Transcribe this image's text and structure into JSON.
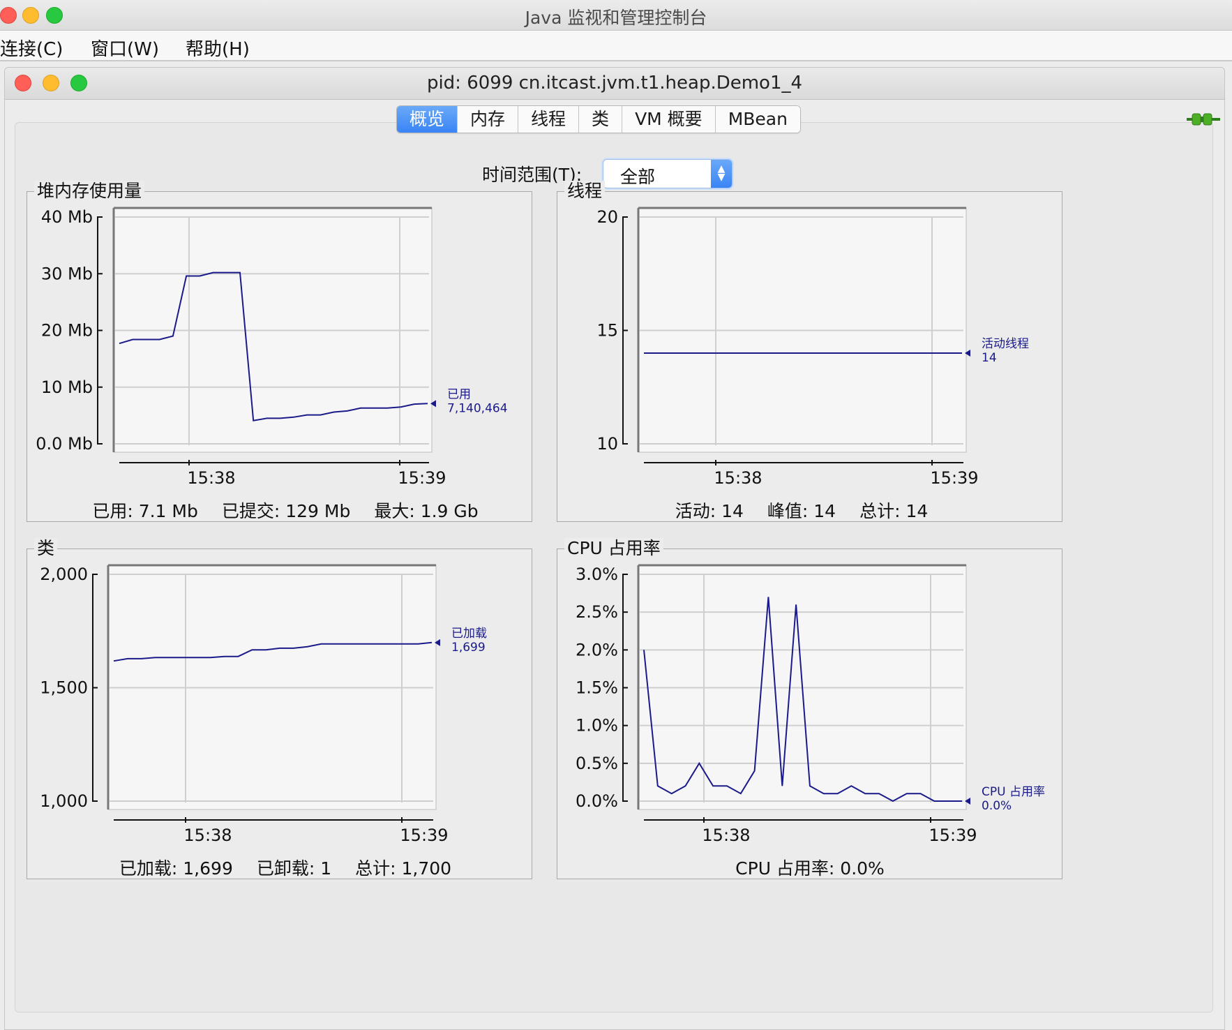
{
  "outer_window": {
    "title": "Java 监视和管理控制台"
  },
  "menubar": {
    "items": [
      {
        "label": "连接(C)"
      },
      {
        "label": "窗口(W)"
      },
      {
        "label": "帮助(H)"
      }
    ]
  },
  "inner_window": {
    "title": "pid: 6099 cn.itcast.jvm.t1.heap.Demo1_4"
  },
  "tabs": [
    {
      "label": "概览",
      "active": true
    },
    {
      "label": "内存",
      "active": false
    },
    {
      "label": "线程",
      "active": false
    },
    {
      "label": "类",
      "active": false
    },
    {
      "label": "VM 概要",
      "active": false
    },
    {
      "label": "MBean",
      "active": false
    }
  ],
  "time_range": {
    "label": "时间范围(T):",
    "value": "全部"
  },
  "colors": {
    "series": "#1a1a8a",
    "plot_bg": "#f6f6f6",
    "grid": "#cfcfcf",
    "tab_active": "#3a84f5"
  },
  "panels": {
    "heap": {
      "title": "堆内存使用量",
      "footer": [
        "已用: 7.1 Mb",
        "已提交: 129 Mb",
        "最大: 1.9 Gb"
      ],
      "legend_name": "已用",
      "legend_value": "7,140,464"
    },
    "threads": {
      "title": "线程",
      "footer": [
        "活动: 14",
        "峰值: 14",
        "总计: 14"
      ],
      "legend_name": "活动线程",
      "legend_value": "14"
    },
    "classes": {
      "title": "类",
      "footer": [
        "已加载: 1,699",
        "已卸载: 1",
        "总计: 1,700"
      ],
      "legend_name": "已加载",
      "legend_value": "1,699"
    },
    "cpu": {
      "title": "CPU 占用率",
      "footer": [
        "CPU 占用率: 0.0%"
      ],
      "legend_name": "CPU 占用率",
      "legend_value": "0.0%"
    }
  },
  "chart_data": [
    {
      "id": "heap",
      "type": "line",
      "x_ticks": [
        "15:38",
        "15:39"
      ],
      "y_ticks": [
        "0.0 Mb",
        "10 Mb",
        "20 Mb",
        "30 Mb",
        "40 Mb"
      ],
      "ylim": [
        0,
        40
      ],
      "series": [
        {
          "name": "已用",
          "x": [
            0,
            1,
            2,
            3,
            4,
            5,
            6,
            7,
            8,
            9,
            10,
            11,
            12,
            13,
            14,
            15,
            16,
            17,
            18,
            19,
            20,
            21,
            22,
            23
          ],
          "values": [
            17.7,
            18.4,
            18.4,
            18.4,
            19.0,
            29.6,
            29.6,
            30.2,
            30.2,
            30.2,
            4.1,
            4.5,
            4.5,
            4.7,
            5.1,
            5.1,
            5.6,
            5.8,
            6.3,
            6.3,
            6.3,
            6.5,
            7.0,
            7.1
          ]
        }
      ]
    },
    {
      "id": "threads",
      "type": "line",
      "x_ticks": [
        "15:38",
        "15:39"
      ],
      "y_ticks": [
        "10",
        "15",
        "20"
      ],
      "ylim": [
        10,
        20
      ],
      "series": [
        {
          "name": "活动线程",
          "x": [
            0,
            23
          ],
          "values": [
            14,
            14
          ]
        }
      ]
    },
    {
      "id": "classes",
      "type": "line",
      "x_ticks": [
        "15:38",
        "15:39"
      ],
      "y_ticks": [
        "1,000",
        "1,500",
        "2,000"
      ],
      "ylim": [
        1000,
        2000
      ],
      "series": [
        {
          "name": "已加载",
          "x": [
            0,
            1,
            2,
            3,
            4,
            5,
            6,
            7,
            8,
            9,
            10,
            11,
            12,
            13,
            14,
            15,
            16,
            17,
            18,
            19,
            20,
            21,
            22,
            23
          ],
          "values": [
            1618,
            1628,
            1628,
            1633,
            1633,
            1633,
            1633,
            1633,
            1638,
            1638,
            1667,
            1667,
            1674,
            1674,
            1681,
            1693,
            1693,
            1693,
            1693,
            1693,
            1693,
            1693,
            1693,
            1699
          ]
        }
      ]
    },
    {
      "id": "cpu",
      "type": "line",
      "x_ticks": [
        "15:38",
        "15:39"
      ],
      "y_ticks": [
        "0.0%",
        "0.5%",
        "1.0%",
        "1.5%",
        "2.0%",
        "2.5%",
        "3.0%"
      ],
      "ylim": [
        0,
        3
      ],
      "series": [
        {
          "name": "CPU 占用率",
          "x": [
            0,
            1,
            2,
            3,
            4,
            5,
            6,
            7,
            8,
            9,
            10,
            11,
            12,
            13,
            14,
            15,
            16,
            17,
            18,
            19,
            20,
            21,
            22,
            23
          ],
          "values": [
            2.0,
            0.2,
            0.1,
            0.2,
            0.5,
            0.2,
            0.2,
            0.1,
            0.4,
            2.7,
            0.2,
            2.6,
            0.2,
            0.1,
            0.1,
            0.2,
            0.1,
            0.1,
            0.0,
            0.1,
            0.1,
            0.0,
            0.0,
            0.0
          ]
        }
      ]
    }
  ]
}
